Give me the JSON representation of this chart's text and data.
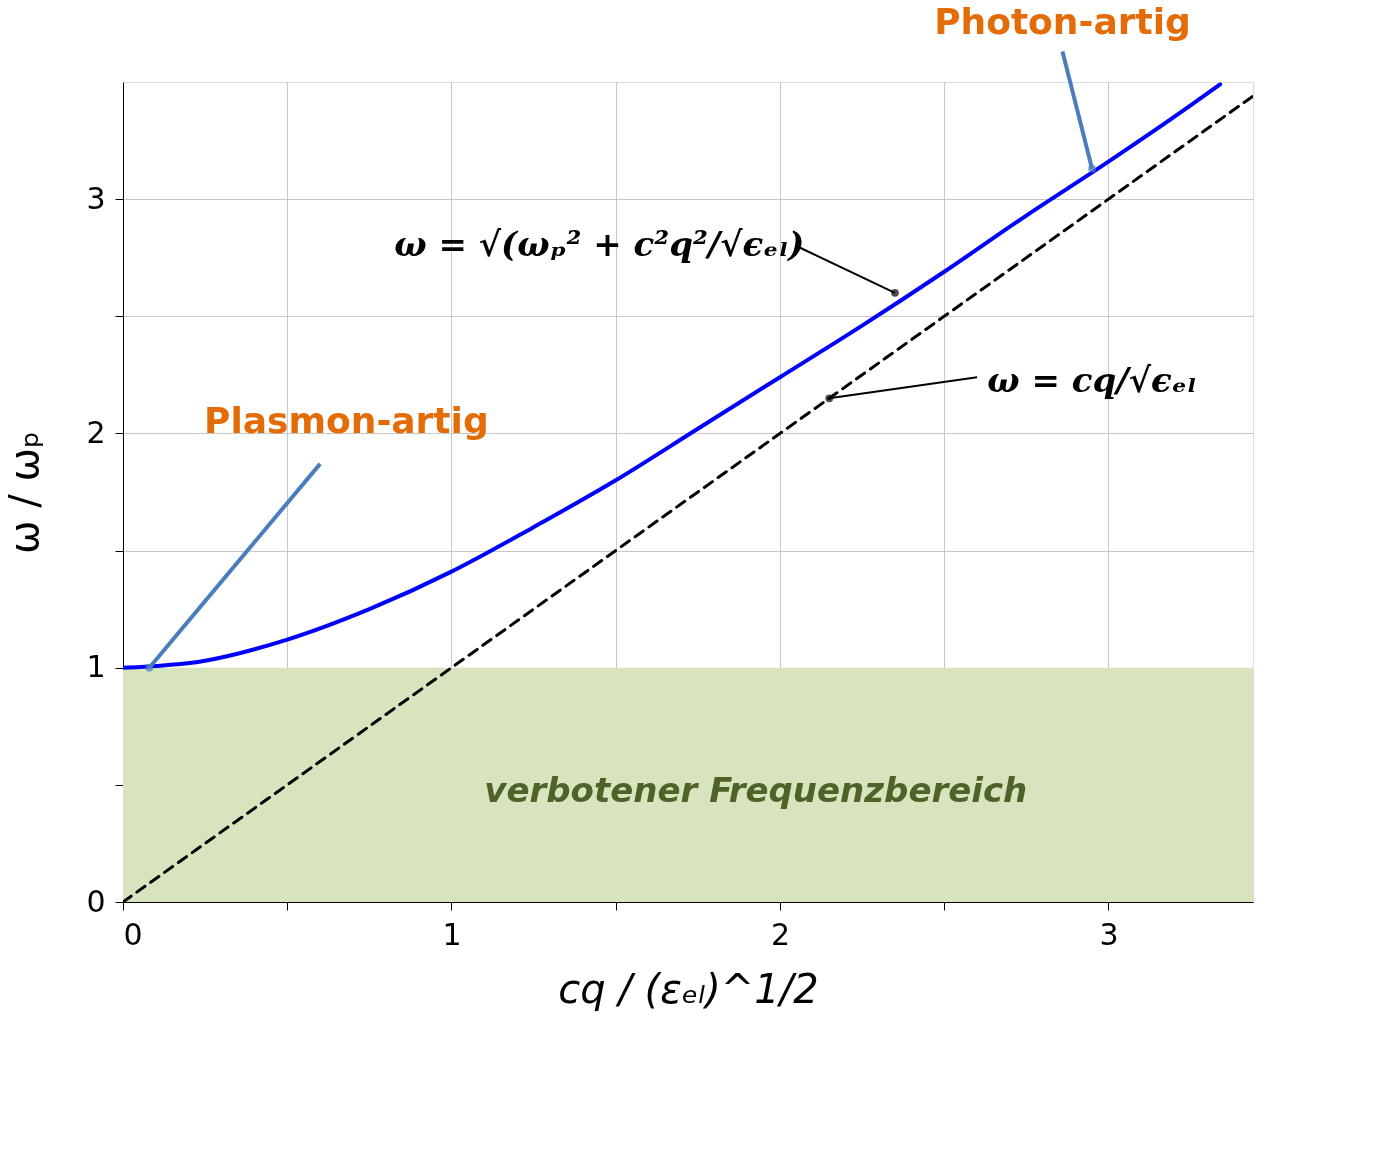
{
  "chart_data": {
    "type": "line",
    "xlabel": "cq / (εₑₗ)^1/2",
    "ylabel": "ω / ωₚ",
    "xlim": [
      0,
      3.44
    ],
    "ylim": [
      0,
      3.5
    ],
    "xticks": [
      0,
      {
        "value": 0.5,
        "label": null
      },
      1,
      {
        "value": 1.5,
        "label": null
      },
      2,
      {
        "value": 2.5,
        "label": null
      },
      3
    ],
    "yticks": [
      0,
      {
        "value": 0.5,
        "label": null
      },
      1,
      {
        "value": 1.5,
        "label": null
      },
      2,
      {
        "value": 2.5,
        "label": null
      },
      3
    ],
    "grid": true,
    "marker": "none",
    "series": [
      {
        "color": "#0000ff",
        "line_style": "solid",
        "x": [
          0,
          0.25,
          0.5,
          0.75,
          1,
          1.25,
          1.5,
          1.75,
          2,
          2.25,
          2.5,
          2.75,
          3,
          3.25,
          3.34
        ],
        "values": [
          1,
          1.03,
          1.12,
          1.25,
          1.41,
          1.6,
          1.8,
          2.02,
          2.24,
          2.46,
          2.69,
          2.93,
          3.16,
          3.4,
          3.49
        ]
      },
      {
        "color": "#000000",
        "line_style": "dashed",
        "x": [
          0,
          3.44
        ],
        "values": [
          0,
          3.44
        ]
      }
    ],
    "bands": [
      {
        "axis": "y",
        "from": 0,
        "to": 1,
        "label": "verbotener Frequenzbereich",
        "color": "#d7e4bd"
      }
    ],
    "annotations": [
      {
        "text": "Photon-artig",
        "x": 2.95,
        "y": 3.13
      },
      {
        "text": "ω = √(ωₚ² + c²q²/√ϵₑₗ)",
        "x": 2.35,
        "y": 2.6
      },
      {
        "text": "ω = cq/√ϵₑₗ",
        "x": 2.15,
        "y": 2.15
      },
      {
        "text": "Plasmon-artig",
        "x": 0.08,
        "y": 1.0
      }
    ]
  }
}
